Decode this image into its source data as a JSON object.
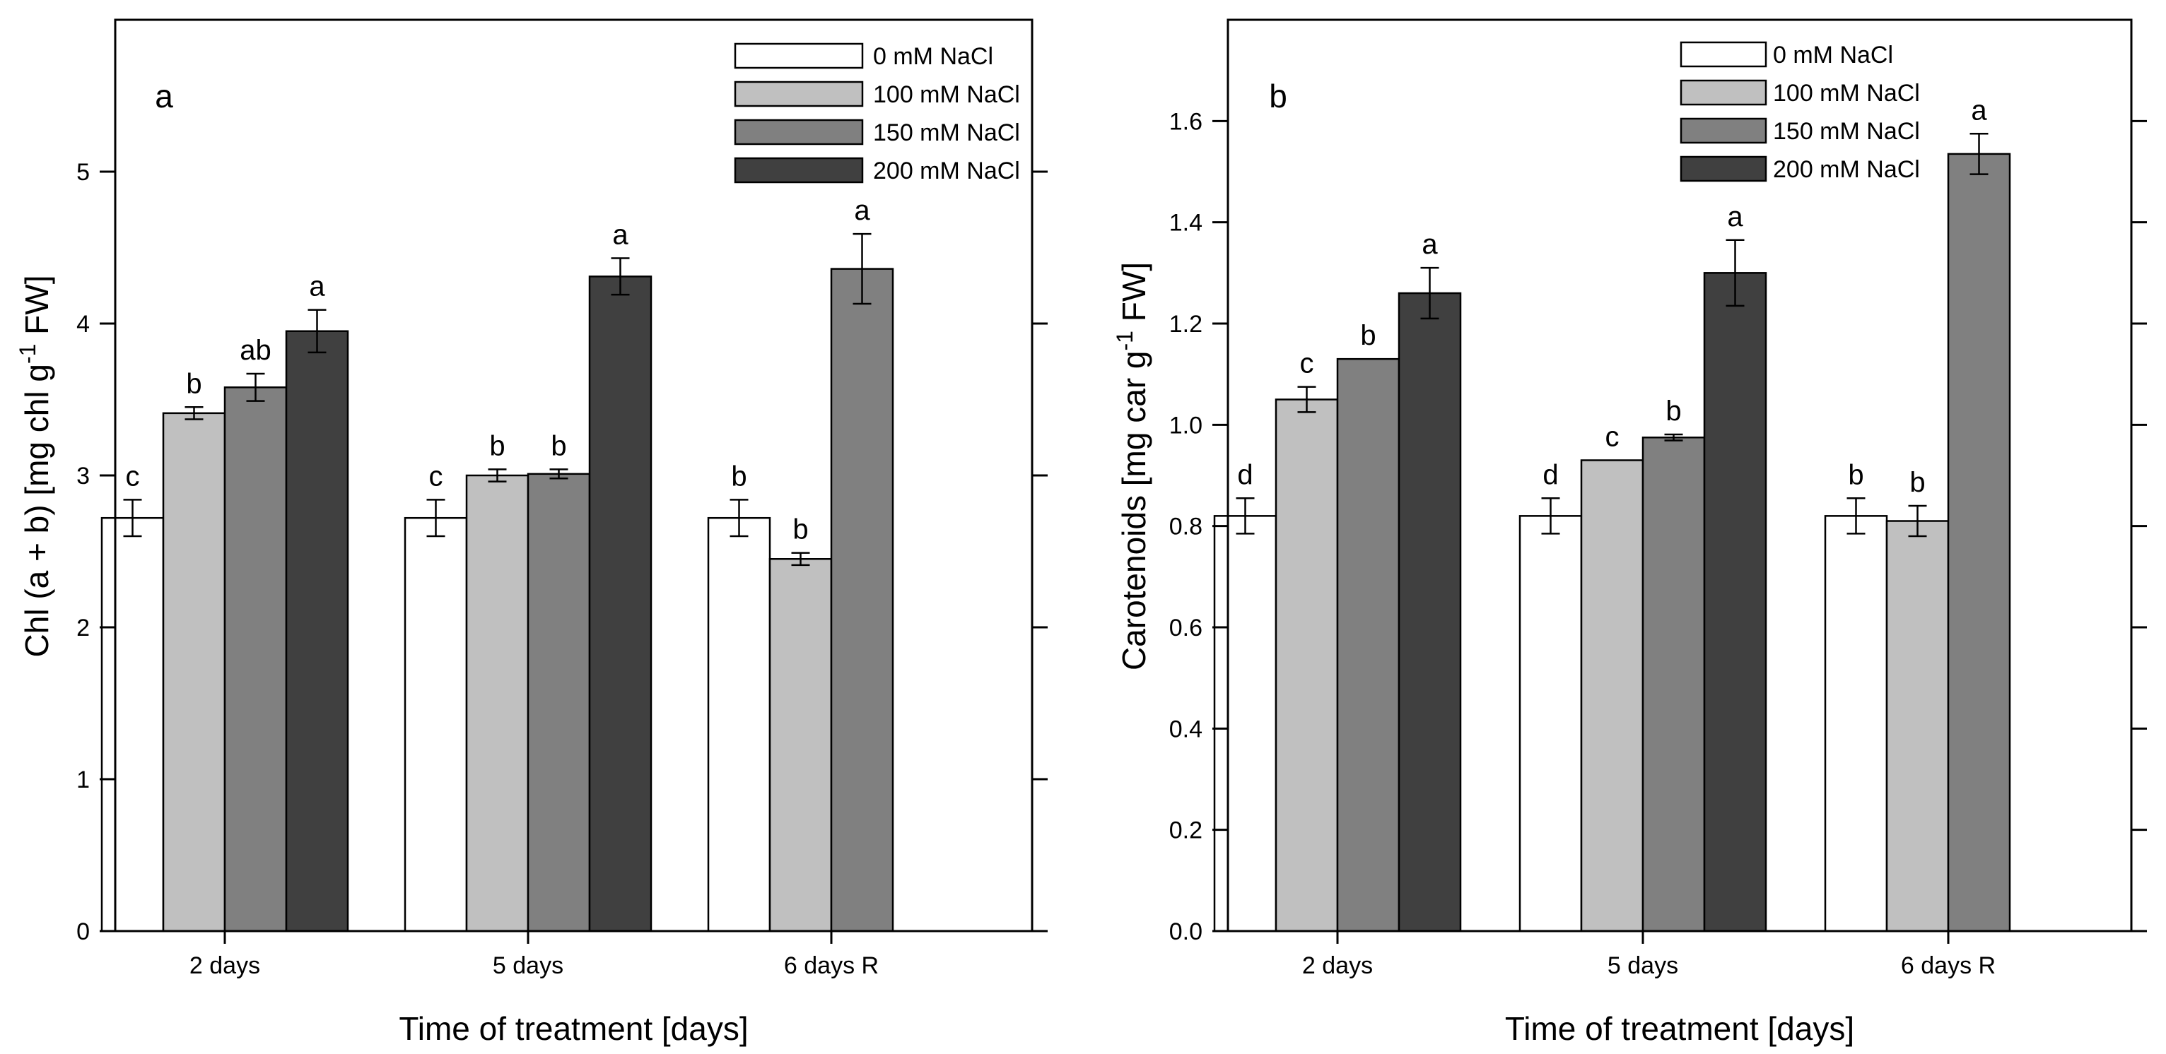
{
  "chart_data": [
    {
      "type": "bar",
      "panel_label": "a",
      "categories": [
        "2 days",
        "5 days",
        "6 days R"
      ],
      "xlabel": "Time of treatment [days]",
      "ylabel_main": "Chl (a + b) [mg chl g",
      "ylabel_sup": "-1",
      "ylabel_tail": " FW]",
      "ylim": [
        0,
        6
      ],
      "yticks": [
        0,
        1,
        2,
        3,
        4,
        5
      ],
      "ytick_labels": [
        "0",
        "1",
        "2",
        "3",
        "4",
        "5"
      ],
      "legend_position": "top-right",
      "series": [
        {
          "name": "0 mM NaCl",
          "color": "#ffffff",
          "values": [
            2.72,
            2.72,
            2.72
          ],
          "errors": [
            0.12,
            0.12,
            0.12
          ],
          "letters": [
            "c",
            "c",
            "b"
          ]
        },
        {
          "name": "100 mM NaCl",
          "color": "#c0c0c0",
          "values": [
            3.41,
            3.0,
            2.45
          ],
          "errors": [
            0.04,
            0.04,
            0.04
          ],
          "letters": [
            "b",
            "b",
            "b"
          ]
        },
        {
          "name": "150 mM NaCl",
          "color": "#808080",
          "values": [
            3.58,
            3.01,
            4.36
          ],
          "errors": [
            0.09,
            0.03,
            0.23
          ],
          "letters": [
            "ab",
            "b",
            "a"
          ]
        },
        {
          "name": "200 mM NaCl",
          "color": "#404040",
          "values": [
            3.95,
            4.31,
            null
          ],
          "errors": [
            0.14,
            0.12,
            null
          ],
          "letters": [
            "a",
            "a",
            null
          ]
        }
      ]
    },
    {
      "type": "bar",
      "panel_label": "b",
      "categories": [
        "2 days",
        "5 days",
        "6 days R"
      ],
      "xlabel": "Time of treatment [days]",
      "ylabel_main": "Carotenoids [mg car g",
      "ylabel_sup": "-1",
      "ylabel_tail": " FW]",
      "ylim": [
        0,
        1.8
      ],
      "yticks": [
        0,
        0.2,
        0.4,
        0.6,
        0.8,
        1.0,
        1.2,
        1.4,
        1.6
      ],
      "ytick_labels": [
        "0.0",
        "0.2",
        "0.4",
        "0.6",
        "0.8",
        "1.0",
        "1.2",
        "1.4",
        "1.6"
      ],
      "legend_position": "top-right",
      "series": [
        {
          "name": "0 mM NaCl",
          "color": "#ffffff",
          "values": [
            0.82,
            0.82,
            0.82
          ],
          "errors": [
            0.035,
            0.035,
            0.035
          ],
          "letters": [
            "d",
            "d",
            "b"
          ]
        },
        {
          "name": "100 mM NaCl",
          "color": "#c0c0c0",
          "values": [
            1.05,
            0.93,
            0.81
          ],
          "errors": [
            0.025,
            0.0,
            0.03
          ],
          "letters": [
            "c",
            "c",
            "b"
          ]
        },
        {
          "name": "150 mM NaCl",
          "color": "#808080",
          "values": [
            1.13,
            0.975,
            1.535
          ],
          "errors": [
            0.0,
            0.006,
            0.04
          ],
          "letters": [
            "b",
            "b",
            "a"
          ]
        },
        {
          "name": "200 mM NaCl",
          "color": "#404040",
          "values": [
            1.26,
            1.3,
            null
          ],
          "errors": [
            0.05,
            0.065,
            null
          ],
          "letters": [
            "a",
            "a",
            null
          ]
        }
      ]
    }
  ]
}
